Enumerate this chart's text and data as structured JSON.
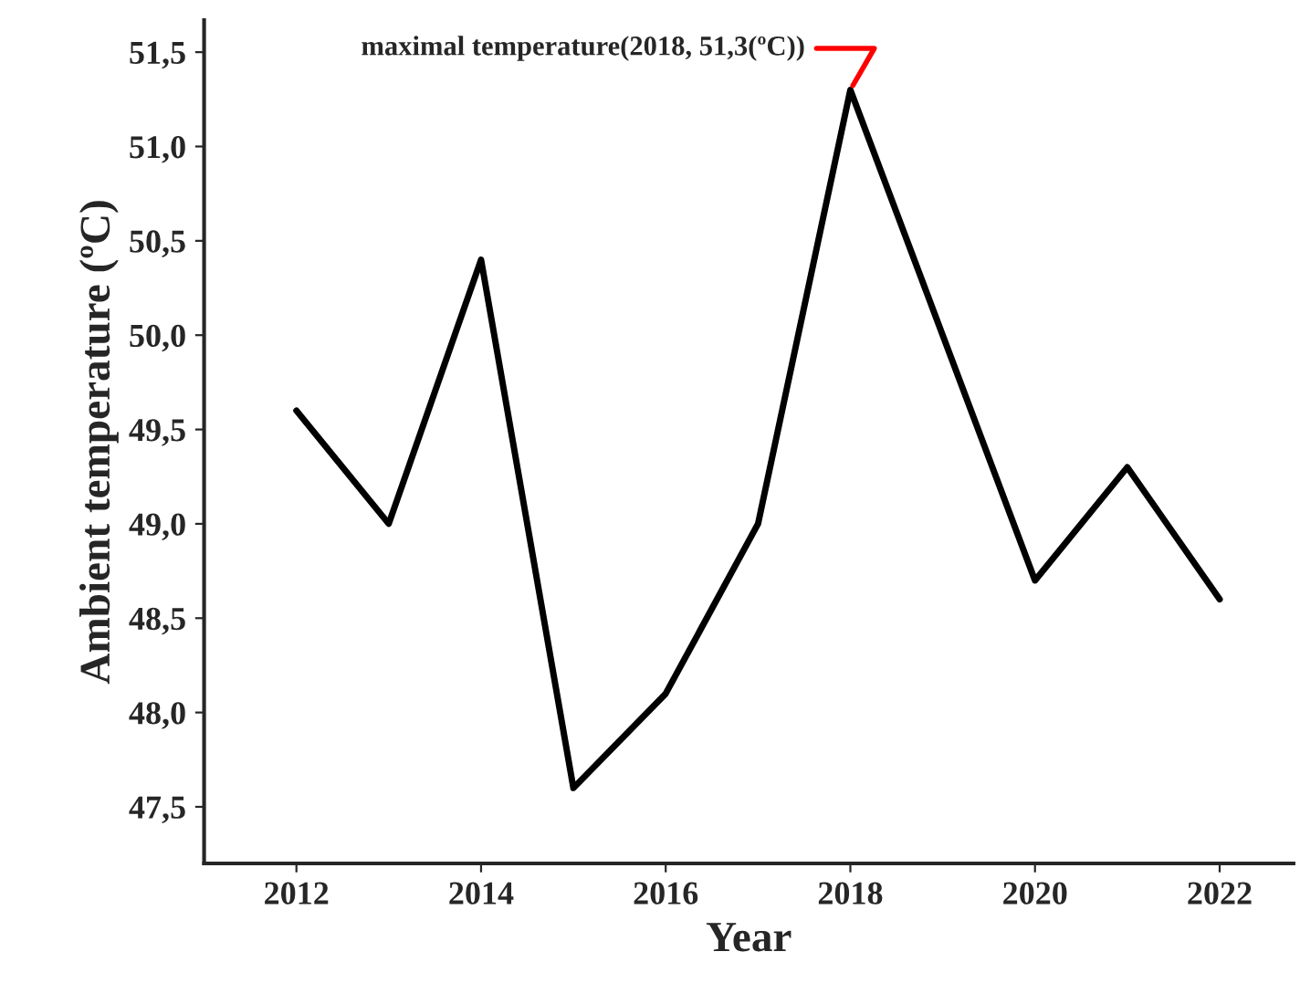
{
  "chart_data": {
    "type": "line",
    "xlabel": "Year",
    "ylabel": "Ambient temperature (ºC)",
    "x": [
      2012,
      2013,
      2014,
      2015,
      2016,
      2017,
      2018,
      2019,
      2020,
      2021,
      2022
    ],
    "series": [
      {
        "color": "#000000",
        "values": [
          49.6,
          49.0,
          50.4,
          47.6,
          48.1,
          49.0,
          51.3,
          50.0,
          48.7,
          49.3,
          48.6
        ]
      }
    ],
    "xlim": [
      2011,
      2022.8
    ],
    "xticks": [
      2012,
      2014,
      2016,
      2018,
      2020,
      2022
    ],
    "ylim": [
      47.2,
      51.67
    ],
    "yticks": [
      {
        "value": 47.5,
        "label": "47,5"
      },
      {
        "value": 48.0,
        "label": "48,0"
      },
      {
        "value": 48.5,
        "label": "48,5"
      },
      {
        "value": 49.0,
        "label": "49,0"
      },
      {
        "value": 49.5,
        "label": "49,5"
      },
      {
        "value": 50.0,
        "label": "50,0"
      },
      {
        "value": 50.5,
        "label": "50,5"
      },
      {
        "value": 51.0,
        "label": "51,0"
      },
      {
        "value": 51.5,
        "label": "51,5"
      }
    ],
    "annotations": [
      {
        "text": "maximal temperature(2018, 51,3(ºC))",
        "x": 2018,
        "y": 51.3
      }
    ],
    "grid": false,
    "legend": false,
    "marker": "none",
    "line_style": "solid"
  }
}
